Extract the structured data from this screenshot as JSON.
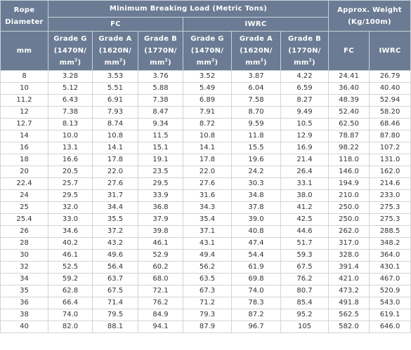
{
  "header": {
    "rope_diameter_line1": "Rope",
    "rope_diameter_line2": "Diameter",
    "mbl_title": "Minimum Breaking Load (Metric Tons)",
    "fc_label": "FC",
    "iwrc_label": "IWRC",
    "weight_line1": "Approx. Weight",
    "weight_line2": "(Kg/100m)",
    "unit_mm": "mm",
    "grades": [
      {
        "name": "Grade G",
        "strength": "(1470N/",
        "unit": "mm",
        "sup": "2",
        "close": ")"
      },
      {
        "name": "Grade A",
        "strength": "(1620N/",
        "unit": "mm",
        "sup": "2",
        "close": ")"
      },
      {
        "name": "Grade B",
        "strength": "(1770N/",
        "unit": "mm",
        "sup": "2",
        "close": ")"
      },
      {
        "name": "Grade G",
        "strength": "(1470N/",
        "unit": "mm",
        "sup": "2",
        "close": ")"
      },
      {
        "name": "Grade A",
        "strength": "(1620N/",
        "unit": "mm",
        "sup": "2",
        "close": ")"
      },
      {
        "name": "Grade B",
        "strength": "(1770N/",
        "unit": "mm",
        "sup": "2",
        "close": ")"
      }
    ],
    "weight_fc": "FC",
    "weight_iwrc": "IWRC"
  },
  "rows": [
    [
      "8",
      "3.28",
      "3.53",
      "3.76",
      "3.52",
      "3.87",
      "4.22",
      "24.41",
      "26.79"
    ],
    [
      "10",
      "5.12",
      "5.51",
      "5.88",
      "5.49",
      "6.04",
      "6.59",
      "36.40",
      "40.40"
    ],
    [
      "11.2",
      "6.43",
      "6.91",
      "7.38",
      "6.89",
      "7.58",
      "8.27",
      "48.39",
      "52.94"
    ],
    [
      "12",
      "7.38",
      "7.93",
      "8.47",
      "7.91",
      "8.70",
      "9.49",
      "52.40",
      "58.20"
    ],
    [
      "12.7",
      "8.13",
      "8.74",
      "9.34",
      "8.72",
      "9.59",
      "10.5",
      "62.50",
      "68.46"
    ],
    [
      "14",
      "10.0",
      "10.8",
      "11.5",
      "10.8",
      "11.8",
      "12.9",
      "78.87",
      "87.80"
    ],
    [
      "16",
      "13.1",
      "14.1",
      "15.1",
      "14.1",
      "15.5",
      "16.9",
      "98.22",
      "107.2"
    ],
    [
      "18",
      "16.6",
      "17.8",
      "19.1",
      "17.8",
      "19.6",
      "21.4",
      "118.0",
      "131.0"
    ],
    [
      "20",
      "20.5",
      "22.0",
      "23.5",
      "22.0",
      "24.2",
      "26.4",
      "146.0",
      "162.0"
    ],
    [
      "22.4",
      "25.7",
      "27.6",
      "29.5",
      "27.6",
      "30.3",
      "33.1",
      "194.9",
      "214.6"
    ],
    [
      "24",
      "29.5",
      "31.7",
      "33.9",
      "31.6",
      "34.8",
      "38.0",
      "210.0",
      "233.0"
    ],
    [
      "25",
      "32.0",
      "34.4",
      "36.8",
      "34.3",
      "37.8",
      "41.2",
      "250.0",
      "275.3"
    ],
    [
      "25.4",
      "33.0",
      "35.5",
      "37.9",
      "35.4",
      "39.0",
      "42.5",
      "250.0",
      "275.3"
    ],
    [
      "26",
      "34.6",
      "37.2",
      "39.8",
      "37.1",
      "40.8",
      "44.6",
      "262.0",
      "288.5"
    ],
    [
      "28",
      "40.2",
      "43.2",
      "46.1",
      "43.1",
      "47.4",
      "51.7",
      "317.0",
      "348.2"
    ],
    [
      "30",
      "46.1",
      "49.6",
      "52.9",
      "49.4",
      "54.4",
      "59.3",
      "328.0",
      "364.0"
    ],
    [
      "32",
      "52.5",
      "56.4",
      "60.2",
      "56.2",
      "61.9",
      "67.5",
      "391.4",
      "430.1"
    ],
    [
      "34",
      "59.2",
      "63.7",
      "68.0",
      "63.5",
      "69.8",
      "76.2",
      "421.0",
      "467.0"
    ],
    [
      "35",
      "62.8",
      "67.5",
      "72.1",
      "67.3",
      "74.0",
      "80.7",
      "473.2",
      "520.9"
    ],
    [
      "36",
      "66.4",
      "71.4",
      "76.2",
      "71.2",
      "78.3",
      "85.4",
      "491.8",
      "543.0"
    ],
    [
      "38",
      "74.0",
      "79.5",
      "84.9",
      "79.3",
      "87.2",
      "95.2",
      "562.5",
      "619.1"
    ],
    [
      "40",
      "82.0",
      "88.1",
      "94.1",
      "87.9",
      "96.7",
      "105",
      "582.0",
      "646.0"
    ]
  ],
  "colors": {
    "header_bg": "#6b7b93",
    "header_text": "#ffffff",
    "cell_text": "#333333",
    "grid": "#d4d4d4"
  }
}
